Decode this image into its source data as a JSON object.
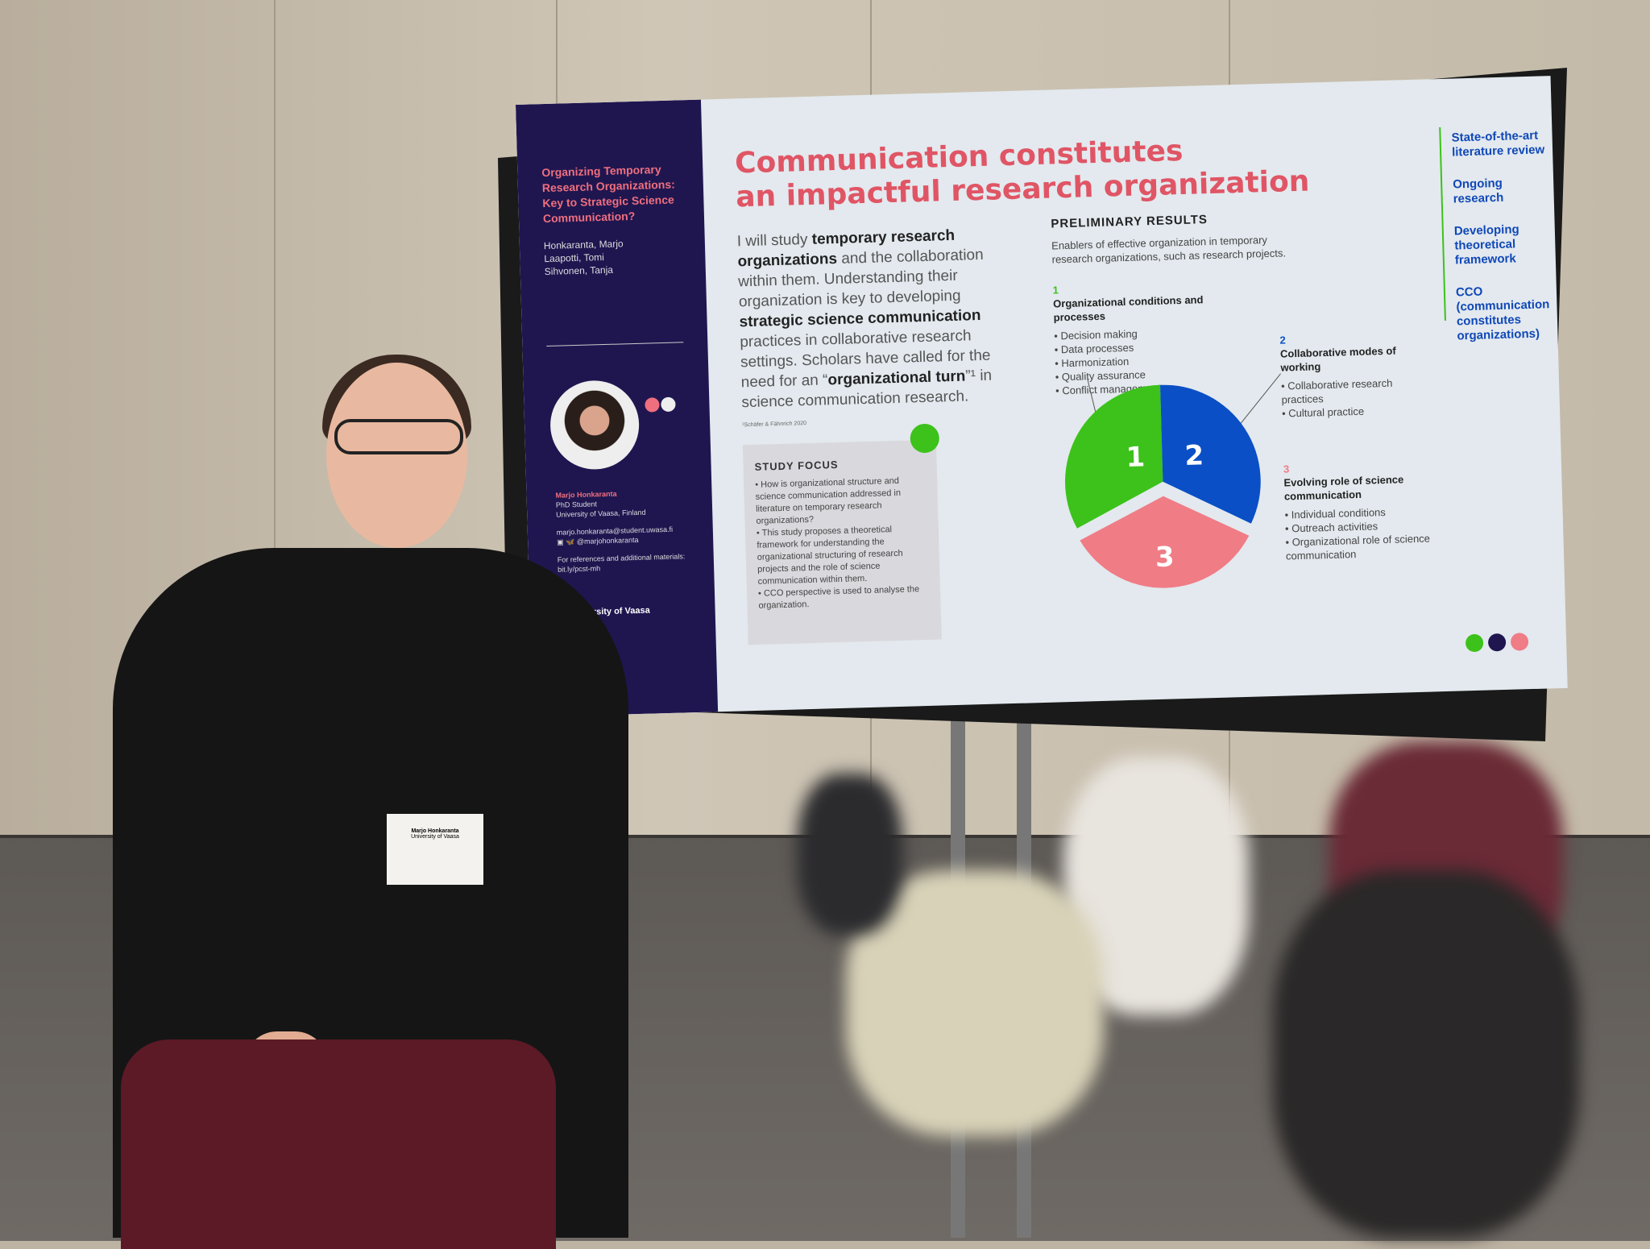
{
  "poster": {
    "title": "Organizing Temporary Research Organizations: Key to Strategic Science Communication?",
    "authors": [
      "Honkaranta, Marjo",
      "Laapotti, Tomi",
      "Sihvonen, Tanja"
    ],
    "presenter": {
      "name": "Marjo Honkaranta",
      "role": "PhD Student",
      "affiliation": "University of Vaasa, Finland",
      "email": "marjo.honkaranta@student.uwasa.fi",
      "social": "@marjohonkaranta",
      "refs_label": "For references and additional materials:",
      "refs_link": "bit.ly/pcst-mh"
    },
    "university": "University of Vaasa",
    "headline": [
      "Communication constitutes",
      "an impactful research organization"
    ],
    "intro": {
      "p1": "I will study ",
      "b1": "temporary research organizations",
      "p2": " and the collaboration within them. Understanding their organization is key to developing ",
      "b2": "strategic science communication",
      "p3": " practices in collaborative research settings. Scholars have called for the need for an “",
      "b3": "organizational turn",
      "p4": "”¹ in science communication research."
    },
    "footnote": "¹Schäfer & Fähnrich 2020",
    "study_focus": {
      "title": "STUDY FOCUS",
      "items": [
        "How is organizational structure and science communication addressed in literature on temporary research organizations?",
        "This study proposes a theoretical framework for understanding the organizational structuring of research projects and the role of science communication within them.",
        "CCO perspective is used to analyse the organization."
      ]
    },
    "results": {
      "title": "PRELIMINARY RESULTS",
      "subtitle": "Enablers of effective organization in temporary research organizations, such as research projects.",
      "groups": [
        {
          "num": "1",
          "title": "Organizational conditions and processes",
          "items": [
            "Decision making",
            "Data processes",
            "Harmonization",
            "Quality assurance",
            "Conflict management"
          ],
          "color": "#3cc21a"
        },
        {
          "num": "2",
          "title": "Collaborative modes of working",
          "items": [
            "Collaborative research practices",
            "Cultural practice"
          ],
          "color": "#0a4fc6"
        },
        {
          "num": "3",
          "title": "Evolving role of science communication",
          "items": [
            "Individual conditions",
            "Outreach activities",
            "Organizational role of science communication"
          ],
          "color": "#f07c86"
        }
      ]
    },
    "sidebar_right": [
      "State-of-the-art literature review",
      "Ongoing research",
      "Developing theoretical framework",
      "CCO (communication constitutes organizations)"
    ]
  },
  "badge": {
    "name": "Marjo Honkaranta",
    "org": "University of Vaasa"
  },
  "colors": {
    "navy": "#1f1650",
    "green": "#3cc21a",
    "blue": "#0a4fc6",
    "pink": "#f07c86",
    "title": "#e05565"
  }
}
